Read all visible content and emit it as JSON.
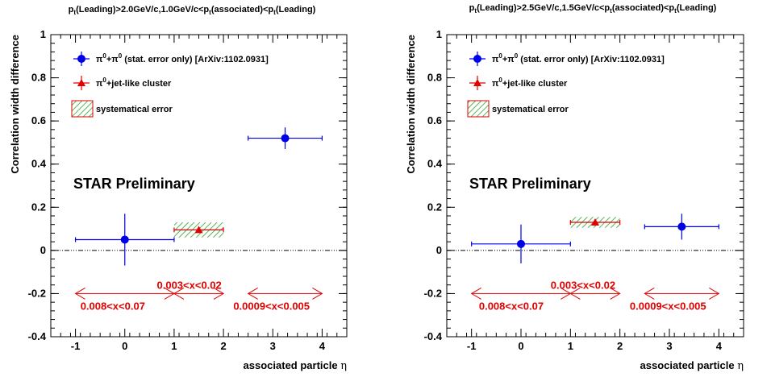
{
  "chart_data": [
    {
      "type": "scatter",
      "title_parts": {
        "a": "p",
        "b": "t",
        "c": "(Leading)>2.0GeV/c,1.0GeV/c<p",
        "d": "t",
        "e": "(associated)<p",
        "f": "t",
        "g": "(Leading)"
      },
      "xlabel": "associated particle",
      "xlabel_symbol": "η",
      "ylabel": "Correlation width difference",
      "xlim": [
        -1.5,
        4.5
      ],
      "ylim": [
        -0.4,
        1.0
      ],
      "xticks": [
        "-1",
        "0",
        "1",
        "2",
        "3",
        "4"
      ],
      "yticks": [
        "-0.4",
        "-0.2",
        "0",
        "0.2",
        "0.4",
        "0.6",
        "0.8",
        "1"
      ],
      "series": [
        {
          "name": "π⁰+π⁰ (stat. error only) [ArXiv:1102.0931]",
          "legend": {
            "pre": "π",
            "sup1": "0",
            "mid": "+π",
            "sup2": "0",
            "post": " (stat. error only) [ArXiv:1102.0931]"
          },
          "color": "#0000e6",
          "marker": "circle",
          "points": [
            {
              "x": 0.0,
              "y": 0.05,
              "xerr": 1.0,
              "yerr": 0.12
            },
            {
              "x": 3.25,
              "y": 0.52,
              "xerr": 0.75,
              "yerr": 0.05
            }
          ]
        },
        {
          "name": "π⁰+jet-like cluster",
          "legend": {
            "pre": "π",
            "sup1": "0",
            "post": "+jet-like cluster"
          },
          "color": "#e00000",
          "marker": "triangle",
          "points": [
            {
              "x": 1.5,
              "y": 0.095,
              "xerr": 0.5,
              "yerr": 0.0,
              "syst": 0.035
            }
          ]
        }
      ],
      "syst_legend": "systematical error",
      "annotation": "STAR Preliminary",
      "x_ranges": [
        {
          "label": "0.008<x<0.07",
          "from": -1.0,
          "to": 1.0,
          "label_at": -0.9,
          "label_pos": "below"
        },
        {
          "label": "0.003<x<0.02",
          "from": 1.0,
          "to": 2.0,
          "label_at": 0.65,
          "label_pos": "above"
        },
        {
          "label": "0.0009<x<0.005",
          "from": 2.5,
          "to": 4.0,
          "label_at": 2.2,
          "label_pos": "below"
        }
      ],
      "grid": false,
      "legend_position": "top-left"
    },
    {
      "type": "scatter",
      "title_parts": {
        "a": "p",
        "b": "t",
        "c": "(Leading)>2.5GeV/c,1.5GeV/c<p",
        "d": "t",
        "e": "(associated)<p",
        "f": "t",
        "g": "(Leading)"
      },
      "xlabel": "associated particle",
      "xlabel_symbol": "η",
      "ylabel": "Correlation width difference",
      "xlim": [
        -1.5,
        4.5
      ],
      "ylim": [
        -0.4,
        1.0
      ],
      "xticks": [
        "-1",
        "0",
        "1",
        "2",
        "3",
        "4"
      ],
      "yticks": [
        "-0.4",
        "-0.2",
        "0",
        "0.2",
        "0.4",
        "0.6",
        "0.8",
        "1"
      ],
      "series": [
        {
          "name": "π⁰+π⁰ (stat. error only) [ArXiv:1102.0931]",
          "legend": {
            "pre": "π",
            "sup1": "0",
            "mid": "+π",
            "sup2": "0",
            "post": " (stat. error only) [ArXiv:1102.0931]"
          },
          "color": "#0000e6",
          "marker": "circle",
          "points": [
            {
              "x": 0.0,
              "y": 0.03,
              "xerr": 1.0,
              "yerr": 0.09
            },
            {
              "x": 3.25,
              "y": 0.11,
              "xerr": 0.75,
              "yerr": 0.06
            }
          ]
        },
        {
          "name": "π⁰+jet-like cluster",
          "legend": {
            "pre": "π",
            "sup1": "0",
            "post": "+jet-like cluster"
          },
          "color": "#e00000",
          "marker": "triangle",
          "points": [
            {
              "x": 1.5,
              "y": 0.13,
              "xerr": 0.5,
              "yerr": 0.0,
              "syst": 0.025
            }
          ]
        }
      ],
      "syst_legend": "systematical error",
      "annotation": "STAR Preliminary",
      "x_ranges": [
        {
          "label": "0.008<x<0.07",
          "from": -1.0,
          "to": 1.0,
          "label_at": -0.85,
          "label_pos": "below"
        },
        {
          "label": "0.003<x<0.02",
          "from": 1.0,
          "to": 2.0,
          "label_at": 0.6,
          "label_pos": "above"
        },
        {
          "label": "0.0009<x<0.005",
          "from": 2.5,
          "to": 4.0,
          "label_at": 2.2,
          "label_pos": "below"
        }
      ],
      "grid": false,
      "legend_position": "top-left"
    }
  ]
}
